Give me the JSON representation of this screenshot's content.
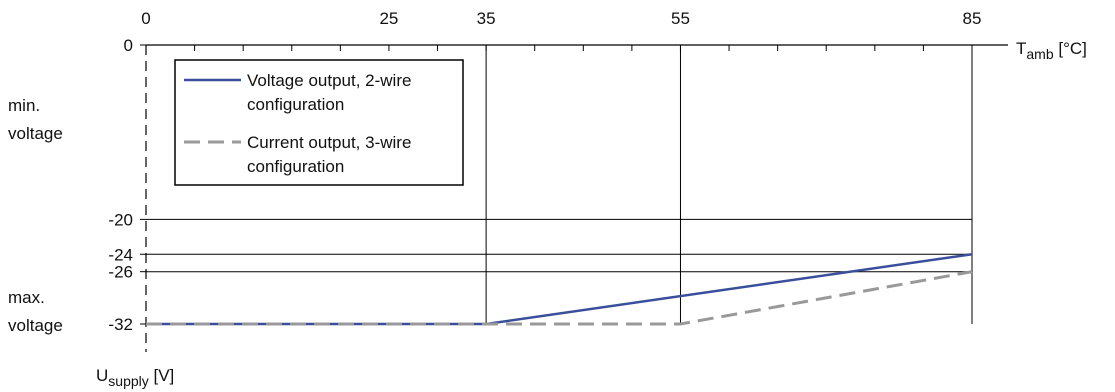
{
  "chart_data": {
    "type": "line",
    "x_axis": {
      "label_main": "T",
      "label_sub": "amb",
      "label_unit": " [°C]",
      "ticks": [
        0,
        25,
        35,
        55,
        85
      ],
      "range": [
        0,
        85
      ],
      "position": "top"
    },
    "y_axis": {
      "label_main": "U",
      "label_sub": "supply",
      "label_unit": " [V]",
      "ticks": [
        0,
        -20,
        -24,
        -26,
        -32
      ],
      "range": [
        -32,
        0
      ]
    },
    "side_labels": [
      {
        "line1": "min.",
        "line2": "voltage",
        "y": -20
      },
      {
        "line1": "max.",
        "line2": "voltage",
        "y": -32
      }
    ],
    "gridlines": {
      "x": [
        35,
        55,
        85
      ],
      "y": [
        -20,
        -24,
        -26
      ]
    },
    "series": [
      {
        "name_line1": "Voltage output, 2-wire",
        "name_line2": "configuration",
        "style": "solid",
        "color": "#3a4f9c",
        "points": [
          [
            0,
            -32
          ],
          [
            35,
            -32
          ],
          [
            85,
            -24
          ]
        ]
      },
      {
        "name_line1": "Current output, 3-wire",
        "name_line2": "configuration",
        "style": "dashed",
        "color": "#999999",
        "points": [
          [
            0,
            -32
          ],
          [
            55,
            -32
          ],
          [
            85,
            -26
          ]
        ]
      }
    ],
    "legend": {
      "placement": "top-left"
    }
  }
}
